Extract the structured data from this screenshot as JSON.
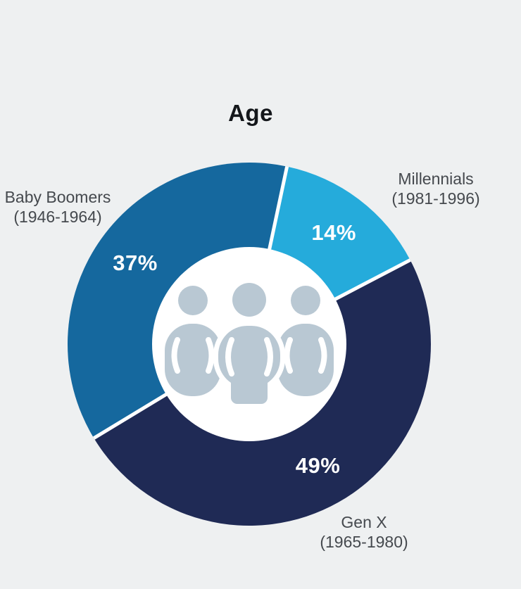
{
  "page": {
    "background_color": "#eef0f1"
  },
  "chart_data": {
    "type": "donut",
    "title": "Age",
    "direction": "clockwise",
    "start_angle_deg": 12,
    "inner_radius_ratio": 0.535,
    "center_icon": "people-group-icon",
    "hole_color": "#ffffff",
    "icon_color": "#b9c8d3",
    "gap_color": "#ffffff",
    "value_label_color": "#ffffff",
    "category_label_color": "#45494e",
    "legend_position": "outside-labels",
    "segments": [
      {
        "label": "Millennials",
        "years": "(1981-1996)",
        "value": 14,
        "value_label": "14%",
        "color": "#25abdb"
      },
      {
        "label": "Gen X",
        "years": "(1965-1980)",
        "value": 49,
        "value_label": "49%",
        "color": "#1f2a55"
      },
      {
        "label": "Baby Boomers",
        "years": "(1946-1964)",
        "value": 37,
        "value_label": "37%",
        "color": "#15689e"
      }
    ]
  }
}
